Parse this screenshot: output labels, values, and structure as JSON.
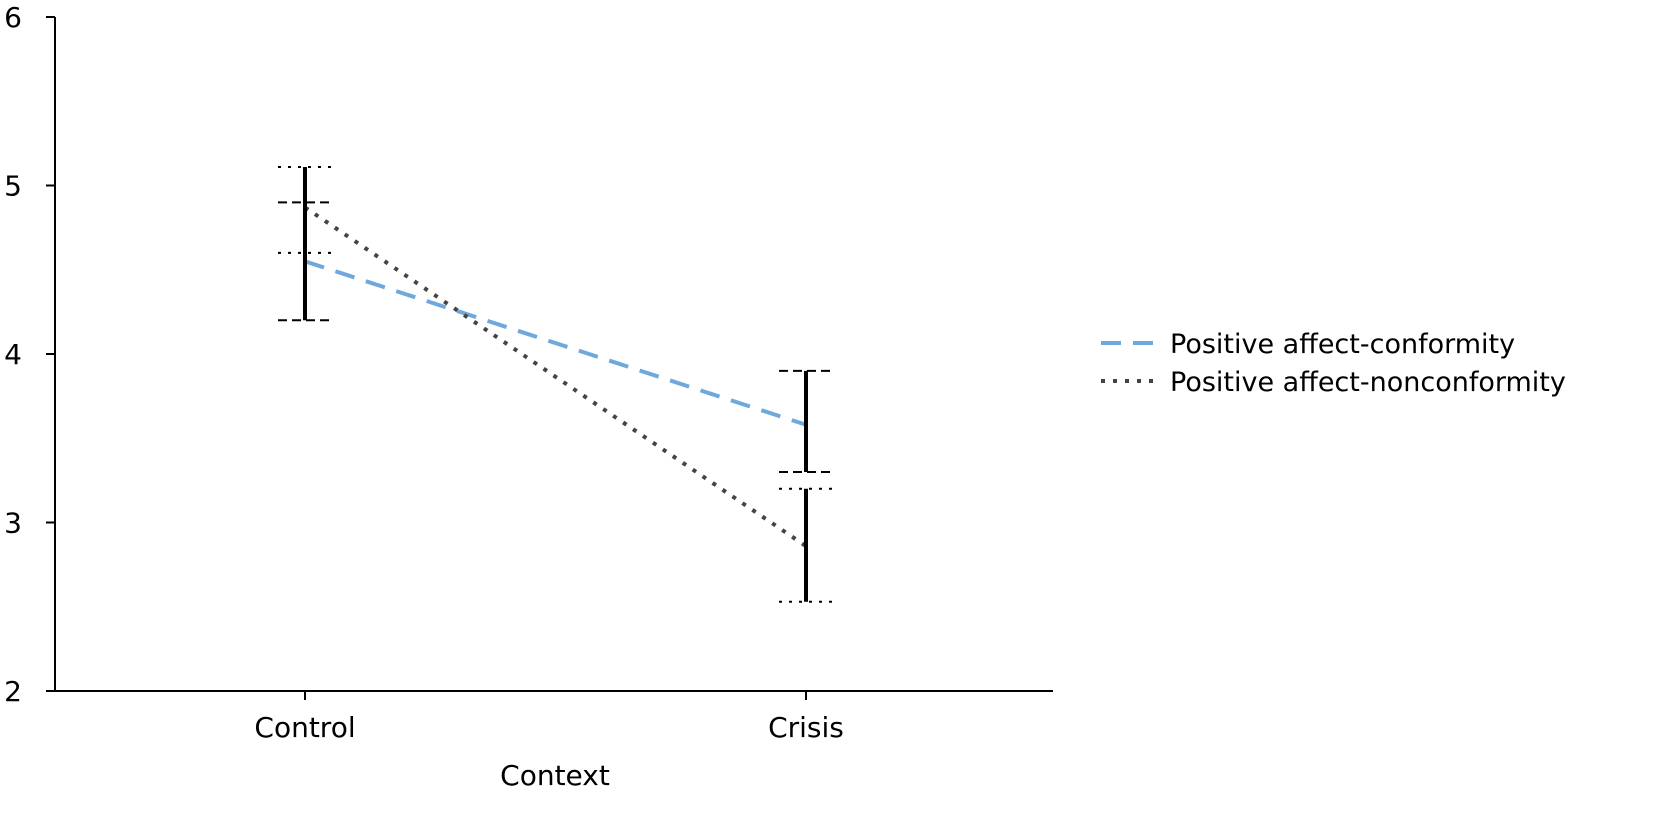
{
  "chart_data": {
    "type": "line",
    "xlabel": "Context",
    "ylabel": "",
    "categories": [
      "Control",
      "Crisis"
    ],
    "ylim": [
      2,
      6
    ],
    "yticks": [
      2,
      3,
      4,
      5,
      6
    ],
    "ytick_labels": [
      "2",
      "3",
      "4",
      "5",
      "6"
    ],
    "grid": false,
    "legend_position": "right",
    "series": [
      {
        "name": "Positive affect-conformity",
        "values": [
          4.55,
          3.58
        ],
        "error_low": [
          4.2,
          3.3
        ],
        "error_high": [
          4.9,
          3.9
        ],
        "color": "#6fa8dc",
        "line_style": "dashed",
        "error_cap_style": "dashed"
      },
      {
        "name": "Positive affect-nonconformity",
        "values": [
          4.87,
          2.86
        ],
        "error_low": [
          4.6,
          2.53
        ],
        "error_high": [
          5.11,
          3.2
        ],
        "color": "#444444",
        "line_style": "dotted",
        "error_cap_style": "dotted"
      }
    ]
  }
}
